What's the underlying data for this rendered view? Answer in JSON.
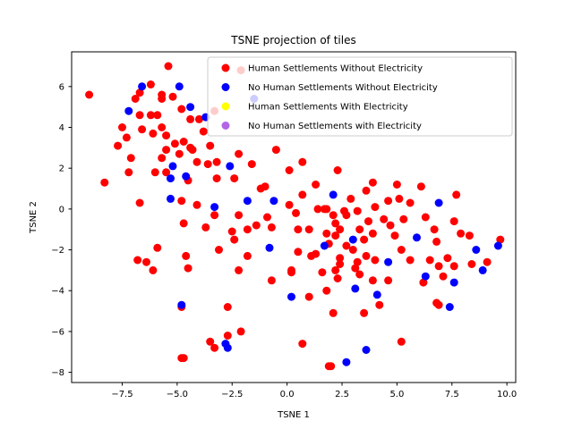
{
  "chart_data": {
    "type": "scatter",
    "title": "TSNE projection of tiles",
    "xlabel": "TSNE 1",
    "ylabel": "TSNE 2",
    "xlim": [
      -9.8,
      10.4
    ],
    "ylim": [
      -8.5,
      7.7
    ],
    "xticks": [
      -7.5,
      -5.0,
      -2.5,
      0.0,
      2.5,
      5.0,
      7.5,
      10.0
    ],
    "xtick_labels": [
      "−7.5",
      "−5.0",
      "−2.5",
      "0.0",
      "2.5",
      "5.0",
      "7.5",
      "10.0"
    ],
    "yticks": [
      -8,
      -6,
      -4,
      -2,
      0,
      2,
      4,
      6
    ],
    "ytick_labels": [
      "−8",
      "−6",
      "−4",
      "−2",
      "0",
      "2",
      "4",
      "6"
    ],
    "grid": false,
    "legend_position": "top-right",
    "series": [
      {
        "name": "Human Settlements Without Electricity",
        "color": "#ff0000",
        "points": [
          [
            -9.0,
            5.6
          ],
          [
            -6.9,
            5.4
          ],
          [
            -6.7,
            5.7
          ],
          [
            -6.2,
            6.1
          ],
          [
            -5.7,
            5.4
          ],
          [
            -5.7,
            5.6
          ],
          [
            -5.4,
            7.0
          ],
          [
            -5.2,
            5.5
          ],
          [
            -7.5,
            4.0
          ],
          [
            -7.3,
            3.5
          ],
          [
            -7.7,
            3.1
          ],
          [
            -6.7,
            4.6
          ],
          [
            -6.6,
            3.9
          ],
          [
            -6.2,
            4.6
          ],
          [
            -5.9,
            4.6
          ],
          [
            -6.1,
            3.7
          ],
          [
            -5.7,
            4.0
          ],
          [
            -5.5,
            3.6
          ],
          [
            -5.5,
            2.9
          ],
          [
            -5.1,
            3.2
          ],
          [
            -4.7,
            3.3
          ],
          [
            -4.4,
            3.0
          ],
          [
            -4.3,
            2.9
          ],
          [
            -4.9,
            2.7
          ],
          [
            -4.8,
            4.9
          ],
          [
            -4.4,
            4.4
          ],
          [
            -4.0,
            4.4
          ],
          [
            -3.8,
            3.8
          ],
          [
            -3.5,
            3.1
          ],
          [
            -3.2,
            2.3
          ],
          [
            -3.3,
            4.8
          ],
          [
            -4.1,
            2.3
          ],
          [
            -4.5,
            1.4
          ],
          [
            -3.6,
            2.2
          ],
          [
            -3.2,
            1.5
          ],
          [
            -2.2,
            2.7
          ],
          [
            -1.6,
            2.2
          ],
          [
            -1.2,
            1.0
          ],
          [
            -1.0,
            1.1
          ],
          [
            -0.5,
            2.9
          ],
          [
            -7.1,
            2.5
          ],
          [
            -7.2,
            1.8
          ],
          [
            -6.0,
            1.8
          ],
          [
            -5.5,
            1.8
          ],
          [
            -5.7,
            2.5
          ],
          [
            -8.3,
            1.3
          ],
          [
            -6.7,
            0.3
          ],
          [
            -4.8,
            0.4
          ],
          [
            -4.1,
            0.2
          ],
          [
            -3.3,
            -0.3
          ],
          [
            -2.4,
            1.5
          ],
          [
            -2.2,
            -0.3
          ],
          [
            -2.5,
            -1.1
          ],
          [
            -2.4,
            -1.5
          ],
          [
            -1.8,
            -1.0
          ],
          [
            -1.4,
            -0.8
          ],
          [
            -0.9,
            -0.4
          ],
          [
            -0.7,
            -0.9
          ],
          [
            -0.7,
            -3.5
          ],
          [
            -1.8,
            -2.3
          ],
          [
            -2.2,
            -3.0
          ],
          [
            -3.1,
            -2.0
          ],
          [
            -4.6,
            -2.3
          ],
          [
            -4.5,
            -2.9
          ],
          [
            -4.7,
            -0.7
          ],
          [
            -3.7,
            -0.9
          ],
          [
            -5.9,
            -1.9
          ],
          [
            -6.1,
            -3.0
          ],
          [
            -6.8,
            -2.5
          ],
          [
            -6.4,
            -2.6
          ],
          [
            -2.7,
            -4.8
          ],
          [
            -2.7,
            -6.2
          ],
          [
            -2.1,
            -6.0
          ],
          [
            -3.5,
            -6.5
          ],
          [
            -3.3,
            -6.8
          ],
          [
            -4.8,
            -4.8
          ],
          [
            -4.8,
            -7.3
          ],
          [
            -4.7,
            -7.3
          ],
          [
            -2.1,
            6.8
          ],
          [
            0.1,
            0.2
          ],
          [
            0.4,
            -0.2
          ],
          [
            0.5,
            -1.0
          ],
          [
            0.7,
            0.7
          ],
          [
            0.7,
            2.3
          ],
          [
            0.1,
            1.9
          ],
          [
            1.0,
            -1.0
          ],
          [
            1.4,
            0.0
          ],
          [
            1.3,
            1.2
          ],
          [
            1.7,
            0.0
          ],
          [
            1.8,
            0.0
          ],
          [
            2.1,
            -0.3
          ],
          [
            2.3,
            1.9
          ],
          [
            2.2,
            -0.7
          ],
          [
            1.8,
            -1.2
          ],
          [
            1.9,
            -1.7
          ],
          [
            2.2,
            -1.3
          ],
          [
            2.4,
            -1.0
          ],
          [
            2.7,
            -1.8
          ],
          [
            2.7,
            -0.3
          ],
          [
            2.6,
            -0.1
          ],
          [
            2.9,
            0.5
          ],
          [
            3.2,
            -0.1
          ],
          [
            3.3,
            -1.0
          ],
          [
            3.0,
            -2.0
          ],
          [
            2.4,
            -2.4
          ],
          [
            2.4,
            -2.7
          ],
          [
            3.2,
            -2.6
          ],
          [
            3.5,
            -1.5
          ],
          [
            3.6,
            -2.3
          ],
          [
            3.7,
            -0.6
          ],
          [
            3.9,
            -1.2
          ],
          [
            3.6,
            0.9
          ],
          [
            3.9,
            1.3
          ],
          [
            4.0,
            0.1
          ],
          [
            4.0,
            -2.5
          ],
          [
            4.4,
            -0.5
          ],
          [
            4.6,
            0.4
          ],
          [
            4.7,
            -0.8
          ],
          [
            4.9,
            -1.3
          ],
          [
            5.0,
            1.2
          ],
          [
            5.1,
            0.5
          ],
          [
            5.2,
            -2.0
          ],
          [
            5.3,
            -0.5
          ],
          [
            5.6,
            -2.5
          ],
          [
            5.6,
            0.3
          ],
          [
            6.1,
            1.1
          ],
          [
            6.2,
            -3.6
          ],
          [
            6.5,
            -2.5
          ],
          [
            6.3,
            -0.4
          ],
          [
            6.7,
            -1.0
          ],
          [
            6.8,
            -1.6
          ],
          [
            6.9,
            -2.8
          ],
          [
            6.8,
            -4.6
          ],
          [
            6.9,
            -4.7
          ],
          [
            7.1,
            -3.3
          ],
          [
            7.3,
            -2.4
          ],
          [
            7.6,
            -0.6
          ],
          [
            7.7,
            0.7
          ],
          [
            7.6,
            -2.8
          ],
          [
            7.9,
            -1.2
          ],
          [
            8.3,
            -1.3
          ],
          [
            8.4,
            -2.7
          ],
          [
            9.1,
            -2.6
          ],
          [
            9.7,
            -1.5
          ],
          [
            0.2,
            -3.1
          ],
          [
            0.2,
            -3.0
          ],
          [
            0.5,
            -2.1
          ],
          [
            1.1,
            -2.3
          ],
          [
            1.3,
            -2.2
          ],
          [
            1.0,
            -4.3
          ],
          [
            1.6,
            -3.1
          ],
          [
            1.8,
            -4.0
          ],
          [
            2.1,
            -5.1
          ],
          [
            2.2,
            -3.0
          ],
          [
            2.3,
            -3.4
          ],
          [
            3.1,
            -2.9
          ],
          [
            3.3,
            -3.2
          ],
          [
            3.5,
            -5.1
          ],
          [
            3.9,
            -3.5
          ],
          [
            4.2,
            -4.7
          ],
          [
            4.6,
            -3.5
          ],
          [
            5.2,
            -6.5
          ],
          [
            0.7,
            -6.6
          ],
          [
            1.9,
            -7.7
          ],
          [
            2.0,
            -7.7
          ]
        ]
      },
      {
        "name": "No Human Settlements Without Electricity",
        "color": "#0000ff",
        "points": [
          [
            -7.2,
            4.8
          ],
          [
            -6.6,
            6.0
          ],
          [
            -4.9,
            6.0
          ],
          [
            -4.4,
            5.0
          ],
          [
            -3.7,
            4.5
          ],
          [
            -5.2,
            2.1
          ],
          [
            -5.3,
            1.5
          ],
          [
            -4.6,
            1.6
          ],
          [
            -2.6,
            2.1
          ],
          [
            -5.3,
            0.5
          ],
          [
            -3.3,
            0.1
          ],
          [
            -1.8,
            0.4
          ],
          [
            -0.6,
            0.4
          ],
          [
            -1.5,
            5.4
          ],
          [
            -0.8,
            -1.9
          ],
          [
            -4.8,
            -4.7
          ],
          [
            -2.7,
            -6.8
          ],
          [
            -2.8,
            -6.6
          ],
          [
            0.2,
            -4.3
          ],
          [
            1.7,
            -1.8
          ],
          [
            2.1,
            0.7
          ],
          [
            3.0,
            -1.5
          ],
          [
            3.1,
            -3.9
          ],
          [
            3.6,
            -6.9
          ],
          [
            2.7,
            -7.5
          ],
          [
            4.1,
            -4.2
          ],
          [
            4.6,
            -2.6
          ],
          [
            5.9,
            -1.4
          ],
          [
            6.3,
            -3.3
          ],
          [
            6.9,
            0.3
          ],
          [
            7.6,
            -3.6
          ],
          [
            7.4,
            -4.8
          ],
          [
            8.6,
            -2.0
          ],
          [
            8.9,
            -3.0
          ],
          [
            9.6,
            -1.8
          ]
        ]
      },
      {
        "name": "Human Settlements With Electricity",
        "color": "#ffff00",
        "points": []
      },
      {
        "name": "No Human Settlements with Electricity",
        "color": "#b266e6",
        "points": []
      }
    ]
  }
}
